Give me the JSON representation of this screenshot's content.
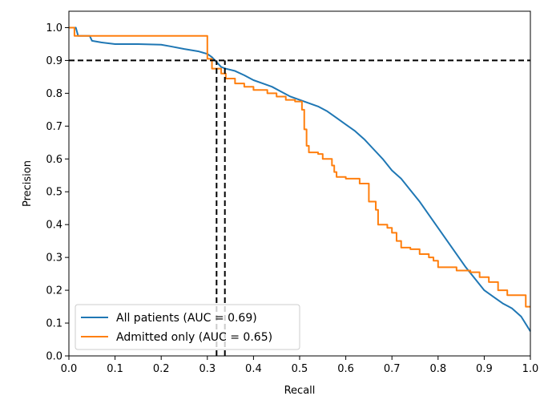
{
  "chart_data": {
    "type": "line",
    "title": "",
    "xlabel": "Recall",
    "ylabel": "Precision",
    "xlim": [
      0.0,
      1.0
    ],
    "ylim": [
      0.0,
      1.05
    ],
    "xticks": [
      0.0,
      0.1,
      0.2,
      0.3,
      0.4,
      0.5,
      0.6,
      0.7,
      0.8,
      0.9,
      1.0
    ],
    "xtick_labels": [
      "0.0",
      "0.1",
      "0.2",
      "0.3",
      "0.4",
      "0.5",
      "0.6",
      "0.7",
      "0.8",
      "0.9",
      "1.0"
    ],
    "yticks": [
      0.0,
      0.1,
      0.2,
      0.3,
      0.4,
      0.5,
      0.6,
      0.7,
      0.8,
      0.9,
      1.0
    ],
    "ytick_labels": [
      "0.0",
      "0.1",
      "0.2",
      "0.3",
      "0.4",
      "0.5",
      "0.6",
      "0.7",
      "0.8",
      "0.9",
      "1.0"
    ],
    "grid": false,
    "legend_position": "lower-left",
    "series": [
      {
        "name": "All patients (AUC = 0.69)",
        "color": "#1f77b4",
        "x": [
          0.0,
          0.015,
          0.02,
          0.02,
          0.045,
          0.05,
          0.07,
          0.1,
          0.15,
          0.2,
          0.22,
          0.25,
          0.28,
          0.3,
          0.31,
          0.32,
          0.33,
          0.34,
          0.36,
          0.38,
          0.4,
          0.42,
          0.44,
          0.46,
          0.48,
          0.5,
          0.52,
          0.54,
          0.56,
          0.58,
          0.6,
          0.62,
          0.64,
          0.66,
          0.68,
          0.7,
          0.72,
          0.74,
          0.76,
          0.78,
          0.8,
          0.82,
          0.84,
          0.86,
          0.88,
          0.9,
          0.92,
          0.94,
          0.96,
          0.98,
          1.0
        ],
        "y": [
          1.0,
          1.0,
          0.975,
          0.975,
          0.975,
          0.96,
          0.955,
          0.95,
          0.95,
          0.948,
          0.943,
          0.935,
          0.928,
          0.92,
          0.91,
          0.895,
          0.88,
          0.875,
          0.868,
          0.855,
          0.84,
          0.83,
          0.82,
          0.805,
          0.79,
          0.78,
          0.77,
          0.76,
          0.745,
          0.725,
          0.705,
          0.685,
          0.66,
          0.63,
          0.6,
          0.565,
          0.54,
          0.505,
          0.47,
          0.43,
          0.39,
          0.35,
          0.31,
          0.27,
          0.235,
          0.2,
          0.18,
          0.16,
          0.145,
          0.12,
          0.075
        ]
      },
      {
        "name": "Admitted only (AUC = 0.65)",
        "color": "#ff7f0e",
        "x": [
          0.0,
          0.012,
          0.012,
          0.3,
          0.3,
          0.31,
          0.31,
          0.33,
          0.33,
          0.34,
          0.34,
          0.36,
          0.36,
          0.38,
          0.38,
          0.4,
          0.4,
          0.43,
          0.43,
          0.45,
          0.45,
          0.47,
          0.47,
          0.49,
          0.49,
          0.505,
          0.505,
          0.51,
          0.51,
          0.515,
          0.515,
          0.52,
          0.52,
          0.54,
          0.54,
          0.55,
          0.55,
          0.57,
          0.57,
          0.575,
          0.575,
          0.58,
          0.58,
          0.6,
          0.6,
          0.63,
          0.63,
          0.65,
          0.65,
          0.665,
          0.665,
          0.67,
          0.67,
          0.69,
          0.69,
          0.7,
          0.7,
          0.71,
          0.71,
          0.72,
          0.72,
          0.74,
          0.74,
          0.76,
          0.76,
          0.78,
          0.78,
          0.79,
          0.79,
          0.8,
          0.8,
          0.84,
          0.84,
          0.87,
          0.87,
          0.89,
          0.89,
          0.91,
          0.91,
          0.93,
          0.93,
          0.95,
          0.95,
          0.99,
          0.99,
          1.0
        ],
        "y": [
          1.0,
          1.0,
          0.975,
          0.975,
          0.905,
          0.905,
          0.875,
          0.875,
          0.86,
          0.86,
          0.845,
          0.845,
          0.83,
          0.83,
          0.82,
          0.82,
          0.81,
          0.81,
          0.8,
          0.8,
          0.79,
          0.79,
          0.78,
          0.78,
          0.775,
          0.775,
          0.75,
          0.75,
          0.69,
          0.69,
          0.64,
          0.64,
          0.62,
          0.62,
          0.615,
          0.615,
          0.6,
          0.6,
          0.58,
          0.58,
          0.56,
          0.56,
          0.545,
          0.545,
          0.54,
          0.54,
          0.525,
          0.525,
          0.47,
          0.47,
          0.445,
          0.445,
          0.4,
          0.4,
          0.39,
          0.39,
          0.375,
          0.375,
          0.35,
          0.35,
          0.33,
          0.33,
          0.325,
          0.325,
          0.31,
          0.31,
          0.3,
          0.3,
          0.29,
          0.29,
          0.27,
          0.27,
          0.26,
          0.26,
          0.255,
          0.255,
          0.24,
          0.24,
          0.225,
          0.225,
          0.2,
          0.2,
          0.185,
          0.185,
          0.15,
          0.15
        ]
      }
    ],
    "reference_lines": [
      {
        "orientation": "horizontal",
        "value": 0.9,
        "style": "dashed",
        "color": "#000000"
      },
      {
        "orientation": "vertical",
        "value": 0.32,
        "style": "dashed",
        "color": "#000000",
        "from": 0.0,
        "to": 0.9
      },
      {
        "orientation": "vertical",
        "value": 0.338,
        "style": "dashed",
        "color": "#000000",
        "from": 0.0,
        "to": 0.9
      }
    ]
  }
}
